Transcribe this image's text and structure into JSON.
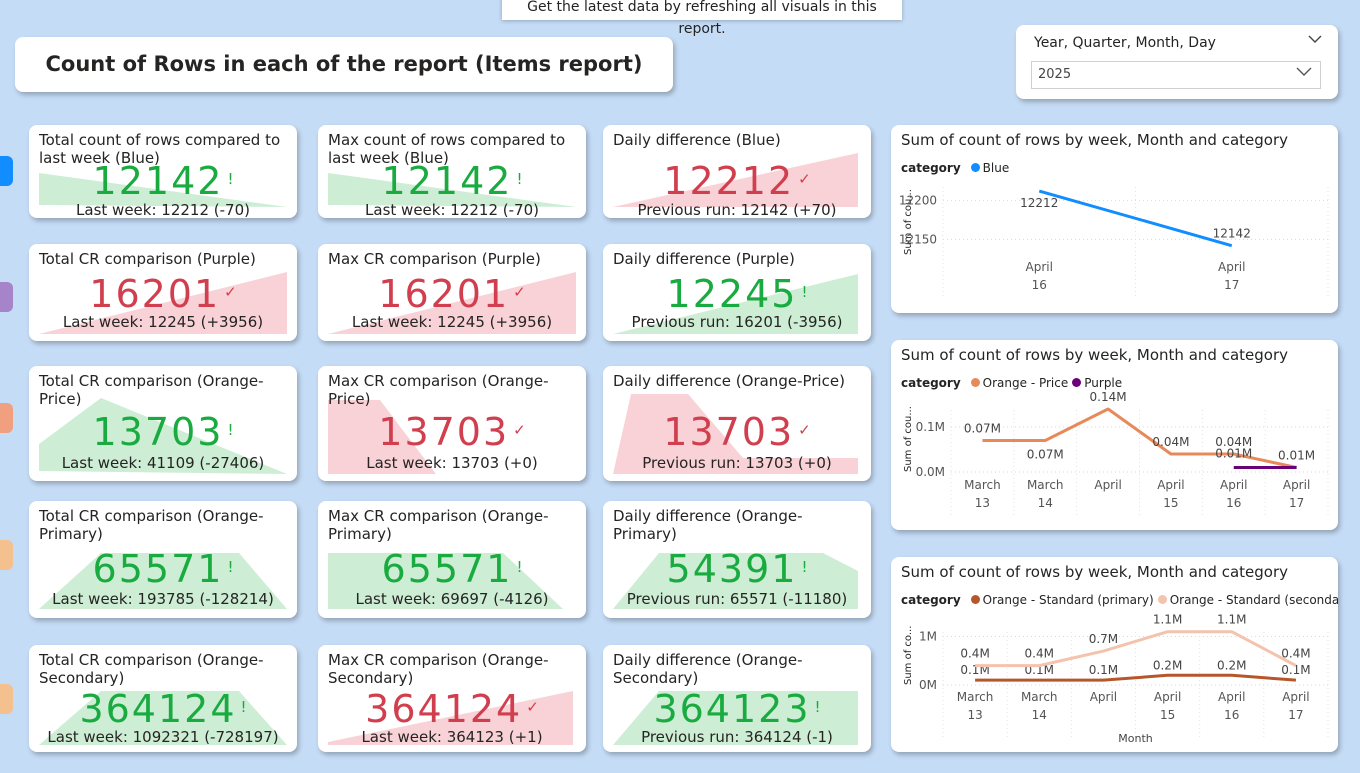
{
  "tooltip": "Get the latest data by refreshing all visuals in this report.",
  "title": "Count of Rows in each of the report (Items report)",
  "slicer": {
    "title": "Year, Quarter, Month, Day",
    "value": "2025"
  },
  "colors": {
    "green": "#1aab40",
    "red": "#d13f4e",
    "blue": "#118dff",
    "orange_price": "#e8895a",
    "purple": "#6b007b",
    "orange_primary": "#b5572b",
    "orange_secondary": "#f4c3ad"
  },
  "tabs": [
    "#118dff",
    "#a584c9",
    "#f09f7f",
    "#f3c08e",
    "#f3c08e"
  ],
  "cards": [
    {
      "title": "Total count of rows compared to last week (Blue)",
      "value": "12142",
      "mark": "!",
      "status": "green",
      "sub": "Last week: 12212 (-70)"
    },
    {
      "title": "Max count of rows compared to last week (Blue)",
      "value": "12142",
      "mark": "!",
      "status": "green",
      "sub": "Last week: 12212 (-70)"
    },
    {
      "title": "Daily difference (Blue)",
      "value": "12212",
      "mark": "✓",
      "status": "red",
      "sub": "Previous run: 12142 (+70)"
    },
    {
      "title": "Total CR comparison (Purple)",
      "value": "16201",
      "mark": "✓",
      "status": "red",
      "sub": "Last week: 12245 (+3956)"
    },
    {
      "title": "Max CR comparison (Purple)",
      "value": "16201",
      "mark": "✓",
      "status": "red",
      "sub": "Last week: 12245 (+3956)"
    },
    {
      "title": "Daily difference (Purple)",
      "value": "12245",
      "mark": "!",
      "status": "green",
      "sub": "Previous run: 16201 (-3956)"
    },
    {
      "title": "Total CR comparison (Orange-Price)",
      "value": "13703",
      "mark": "!",
      "status": "green",
      "sub": "Last week: 41109 (-27406)"
    },
    {
      "title": "Max CR comparison (Orange-Price)",
      "value": "13703",
      "mark": "✓",
      "status": "red",
      "sub": "Last week: 13703 (+0)"
    },
    {
      "title": "Daily difference (Orange-Price)",
      "value": "13703",
      "mark": "✓",
      "status": "red",
      "sub": "Previous run: 13703 (+0)"
    },
    {
      "title": "Total CR comparison (Orange-Primary)",
      "value": "65571",
      "mark": "!",
      "status": "green",
      "sub": "Last week: 193785 (-128214)"
    },
    {
      "title": "Max CR comparison (Orange-Primary)",
      "value": "65571",
      "mark": "!",
      "status": "green",
      "sub": "Last week: 69697 (-4126)"
    },
    {
      "title": "Daily difference (Orange-Primary)",
      "value": "54391",
      "mark": "!",
      "status": "green",
      "sub": "Previous run: 65571 (-11180)"
    },
    {
      "title": "Total CR comparison (Orange-Secondary)",
      "value": "364124",
      "mark": "!",
      "status": "green",
      "sub": "Last week: 1092321 (-728197)"
    },
    {
      "title": "Max CR comparison (Orange-Secondary)",
      "value": "364124",
      "mark": "✓",
      "status": "red",
      "sub": "Last week: 364123 (+1)"
    },
    {
      "title": "Daily difference (Orange-Secondary)",
      "value": "364123",
      "mark": "!",
      "status": "green",
      "sub": "Previous run: 364124 (-1)"
    }
  ],
  "chart_data": [
    {
      "type": "line",
      "title": "Sum of count of rows by week, Month and category",
      "legend_title": "category",
      "ylabel": "Sum of cou...",
      "xlabel": "",
      "x": [
        [
          "April",
          "16"
        ],
        [
          "April",
          "17"
        ]
      ],
      "ylim": [
        12130,
        12230
      ],
      "yticks": [
        {
          "v": 12200,
          "label": "12200"
        },
        {
          "v": 12150,
          "label": "12150"
        }
      ],
      "series": [
        {
          "name": "Blue",
          "color": "#118dff",
          "values": [
            12212,
            12142
          ],
          "labels": [
            "12212",
            "12142"
          ]
        }
      ]
    },
    {
      "type": "line",
      "title": "Sum of count of rows by week, Month and category",
      "legend_title": "category",
      "ylabel": "Sum of cou...",
      "xlabel": "",
      "x": [
        [
          "March",
          "13"
        ],
        [
          "March",
          "14"
        ],
        [
          "April",
          ""
        ],
        [
          "April",
          "15"
        ],
        [
          "April",
          "16"
        ],
        [
          "April",
          "17"
        ]
      ],
      "ylim": [
        0,
        0.16
      ],
      "yticks": [
        {
          "v": 0.1,
          "label": "0.1M"
        },
        {
          "v": 0,
          "label": "0.0M"
        }
      ],
      "series": [
        {
          "name": "Orange - Price",
          "color": "#e8895a",
          "values": [
            0.07,
            0.07,
            0.14,
            0.04,
            0.04,
            0.01
          ],
          "labels": [
            "0.07M",
            "0.07M",
            "0.14M",
            "0.04M",
            "0.04M",
            "0.01M"
          ]
        },
        {
          "name": "Purple",
          "color": "#6b007b",
          "values": [
            null,
            null,
            null,
            null,
            0.01,
            0.01
          ],
          "labels": [
            "",
            "",
            "",
            "",
            "0.01M",
            ""
          ]
        }
      ]
    },
    {
      "type": "line",
      "title": "Sum of count of rows by week, Month and category",
      "legend_title": "category",
      "ylabel": "Sum of co...",
      "xlabel": "Month",
      "x": [
        [
          "March",
          "13"
        ],
        [
          "March",
          "14"
        ],
        [
          "April",
          ""
        ],
        [
          "April",
          "15"
        ],
        [
          "April",
          "16"
        ],
        [
          "April",
          "17"
        ]
      ],
      "ylim": [
        0,
        1.3
      ],
      "yticks": [
        {
          "v": 1,
          "label": "1M"
        },
        {
          "v": 0,
          "label": "0M"
        }
      ],
      "series": [
        {
          "name": "Orange - Standard (primary)",
          "color": "#b5572b",
          "values": [
            0.1,
            0.1,
            0.1,
            0.2,
            0.2,
            0.1
          ],
          "labels": [
            "0.1M",
            "0.1M",
            "0.1M",
            "0.2M",
            "0.2M",
            "0.1M"
          ]
        },
        {
          "name": "Orange - Standard (secondary)",
          "color": "#f4c3ad",
          "values": [
            0.4,
            0.4,
            0.7,
            1.1,
            1.1,
            0.4
          ],
          "labels": [
            "0.4M",
            "0.4M",
            "0.7M",
            "1.1M",
            "1.1M",
            "0.4M"
          ]
        }
      ]
    }
  ]
}
